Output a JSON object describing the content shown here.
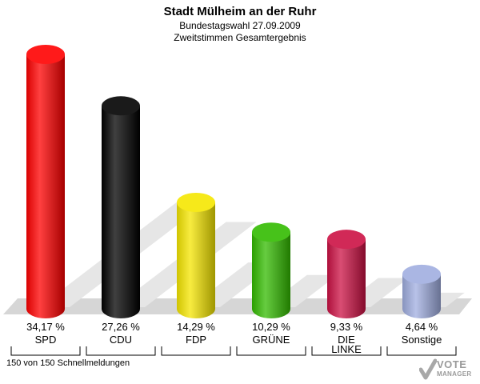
{
  "header": {
    "title": "Stadt Mülheim an der Ruhr",
    "subtitle": "Bundestagswahl 27.09.2009",
    "subtitle2": "Zweitstimmen Gesamtergebnis"
  },
  "chart_data": {
    "type": "bar",
    "title": "Stadt Mülheim an der Ruhr",
    "subtitle": "Bundestagswahl 27.09.2009 / Zweitstimmen Gesamtergebnis",
    "categories": [
      "SPD",
      "CDU",
      "FDP",
      "GRÜNE",
      "DIE LINKE",
      "Sonstige"
    ],
    "category_lines": [
      [
        "SPD"
      ],
      [
        "CDU"
      ],
      [
        "FDP"
      ],
      [
        "GRÜNE"
      ],
      [
        "DIE",
        "LINKE"
      ],
      [
        "Sonstige"
      ]
    ],
    "values": [
      34.17,
      27.26,
      14.29,
      10.29,
      9.33,
      4.64
    ],
    "value_labels": [
      "34,17 %",
      "27,26 %",
      "14,29 %",
      "10,29 %",
      "9,33 %",
      "4,64 %"
    ],
    "colors": [
      "#ff0000",
      "#000000",
      "#f5e600",
      "#33bb00",
      "#cc1144",
      "#a0aee0"
    ],
    "ylim": [
      0,
      35
    ],
    "grid": false,
    "legend": "none"
  },
  "footer": {
    "status": "150 von 150 Schnellmeldungen"
  },
  "logo": {
    "line1": "VOTE",
    "line2": "MANAGER"
  }
}
